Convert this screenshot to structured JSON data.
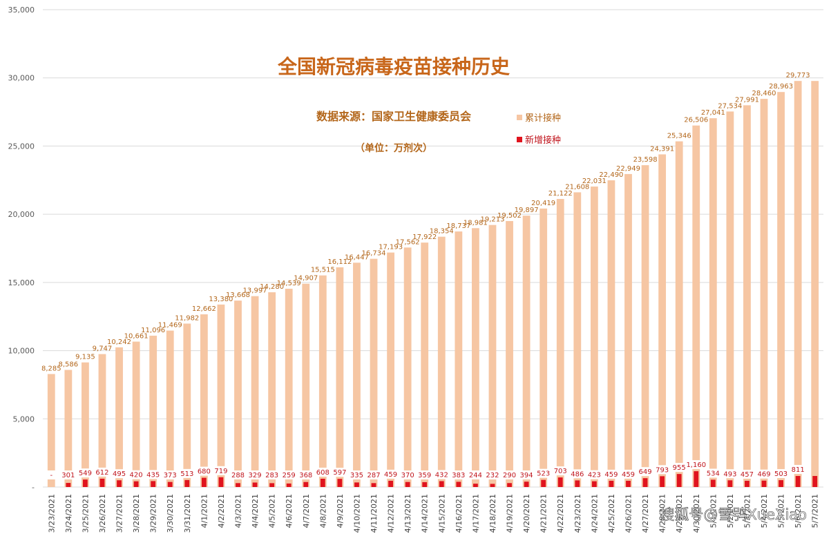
{
  "chart_data": {
    "type": "bar",
    "title": "全国新冠病毒疫苗接种历史",
    "subtitle": "数据来源：国家卫生健康委员会",
    "unit_note": "（单位：万剂次）",
    "xlabel": "",
    "ylabel": "",
    "ylim": [
      0,
      35000
    ],
    "yticks": [
      0,
      5000,
      10000,
      15000,
      20000,
      25000,
      30000,
      35000
    ],
    "ytick_labels": [
      "-",
      "5,000",
      "10,000",
      "15,000",
      "20,000",
      "25,000",
      "30,000",
      "35,000"
    ],
    "grid": true,
    "legend_position": "top-right",
    "categories": [
      "3/23/2021",
      "3/24/2021",
      "3/25/2021",
      "3/26/2021",
      "3/27/2021",
      "3/28/2021",
      "3/29/2021",
      "3/30/2021",
      "3/31/2021",
      "4/1/2021",
      "4/2/2021",
      "4/3/2021",
      "4/4/2021",
      "4/5/2021",
      "4/6/2021",
      "4/7/2021",
      "4/8/2021",
      "4/9/2021",
      "4/10/2021",
      "4/11/2021",
      "4/12/2021",
      "4/13/2021",
      "4/14/2021",
      "4/15/2021",
      "4/16/2021",
      "4/17/2021",
      "4/18/2021",
      "4/19/2021",
      "4/20/2021",
      "4/21/2021",
      "4/22/2021",
      "4/23/2021",
      "4/24/2021",
      "4/25/2021",
      "4/26/2021",
      "4/27/2021",
      "4/28/2021",
      "4/29/2021",
      "4/30/2021",
      "5/1/2021",
      "5/2/2021",
      "5/3/2021",
      "5/4/2021",
      "5/5/2021",
      "5/6/2021",
      "5/7/2021"
    ],
    "series": [
      {
        "name": "累计接种",
        "color": "#f6c6a3",
        "label_color": "#b3661a",
        "values": [
          8285,
          8586,
          9135,
          9747,
          10242,
          10661,
          11096,
          11469,
          11982,
          12662,
          13380,
          13668,
          13997,
          14280,
          14539,
          14907,
          15515,
          16112,
          16447,
          16734,
          17193,
          17562,
          17922,
          18354,
          18737,
          18981,
          19213,
          19502,
          19897,
          20419,
          21122,
          21608,
          22031,
          22490,
          22949,
          23598,
          24391,
          25346,
          26506,
          27041,
          27534,
          27991,
          28460,
          28963,
          29773,
          29773
        ],
        "labels": [
          "8,285",
          "8,586",
          "9,135",
          "9,747",
          "10,242",
          "10,661",
          "11,096",
          "11,469",
          "11,982",
          "12,662",
          "13,380",
          "13,668",
          "13,997",
          "14,280",
          "14,539",
          "14,907",
          "15,515",
          "16,112",
          "16,447",
          "16,734",
          "17,193",
          "17,562",
          "17,922",
          "18,354",
          "18,737",
          "18,981",
          "19,213",
          "19,502",
          "19,897",
          "20,419",
          "21,122",
          "21,608",
          "22,031",
          "22,490",
          "22,949",
          "23,598",
          "24,391",
          "25,346",
          "26,506",
          "27,041",
          "27,534",
          "27,991",
          "28,460",
          "28,963",
          "29,773",
          ""
        ]
      },
      {
        "name": "新增接种",
        "color": "#e0141e",
        "label_color": "#c0141c",
        "values": [
          0,
          301,
          549,
          612,
          495,
          420,
          435,
          373,
          513,
          680,
          719,
          288,
          329,
          283,
          259,
          368,
          608,
          597,
          335,
          287,
          459,
          370,
          359,
          432,
          383,
          244,
          232,
          290,
          394,
          523,
          703,
          486,
          423,
          459,
          459,
          649,
          793,
          955,
          1160,
          534,
          493,
          457,
          469,
          503,
          811,
          811
        ],
        "labels": [
          "-",
          "301",
          "549",
          "612",
          "495",
          "420",
          "435",
          "373",
          "513",
          "680",
          "719",
          "288",
          "329",
          "283",
          "259",
          "368",
          "608",
          "597",
          "335",
          "287",
          "459",
          "370",
          "359",
          "432",
          "383",
          "244",
          "232",
          "290",
          "394",
          "523",
          "703",
          "486",
          "423",
          "459",
          "459",
          "649",
          "793",
          "955",
          "1,160",
          "534",
          "493",
          "457",
          "469",
          "503",
          "811",
          ""
        ]
      }
    ],
    "watermark": "搜狐号@雪鸮XueXiao"
  }
}
